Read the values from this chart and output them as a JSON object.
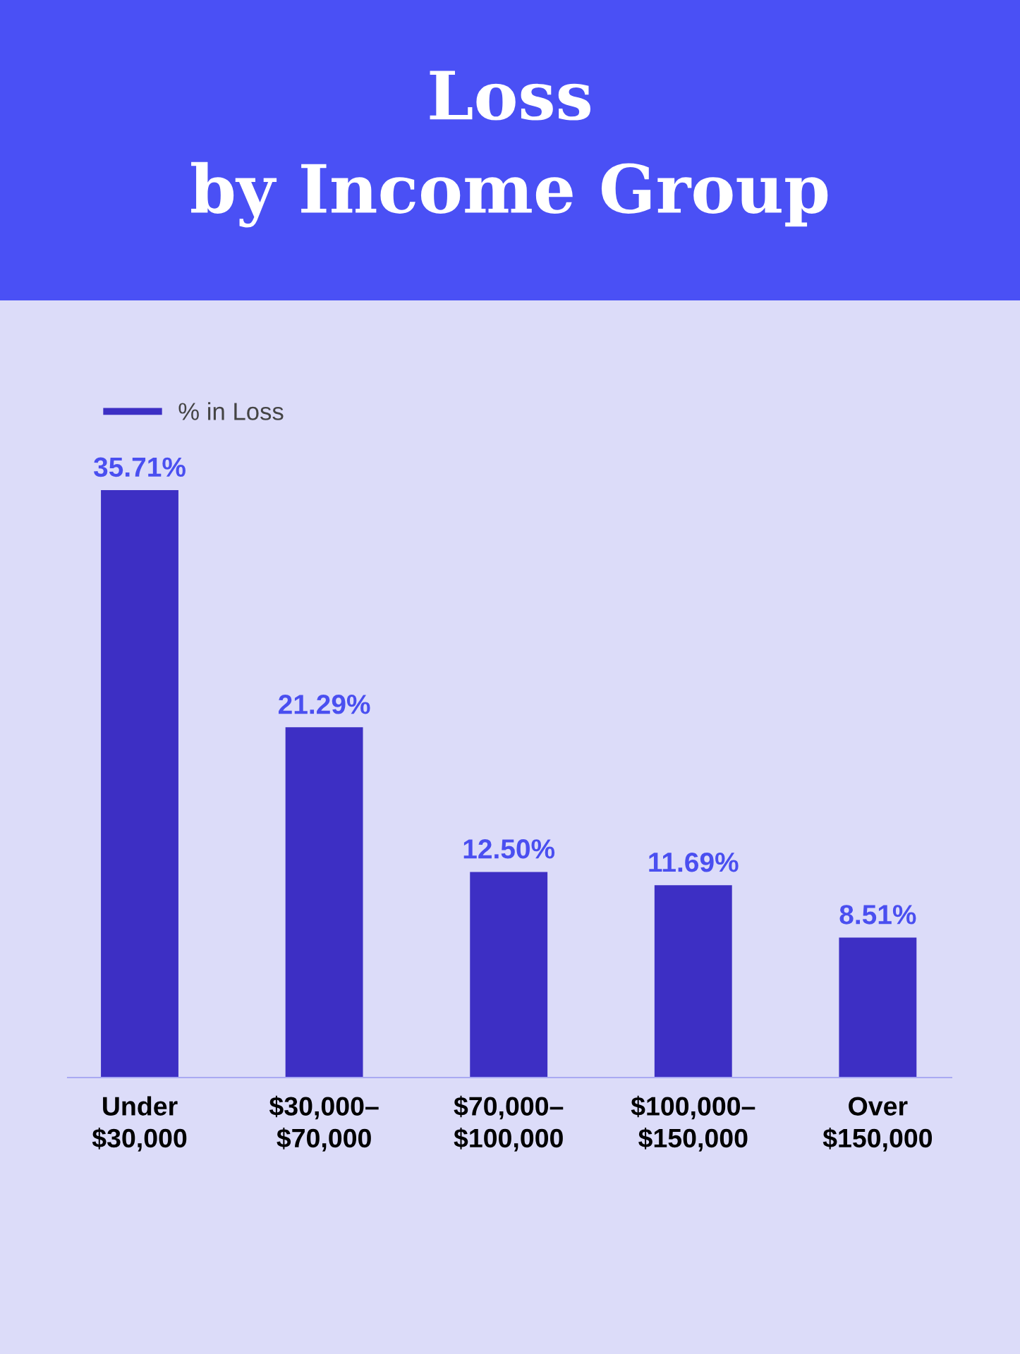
{
  "chart_data": {
    "type": "bar",
    "title": "Loss\nby Income Group",
    "categories": [
      "Under\n$30,000",
      "$30,000–\n$70,000",
      "$70,000–\n$100,000",
      "$100,000–\n$150,000",
      "Over\n$150,000"
    ],
    "series": [
      {
        "name": "% in Loss",
        "color": "#3d2fc4",
        "values": [
          35.71,
          21.29,
          12.5,
          11.69,
          8.51
        ],
        "value_labels": [
          "35.71%",
          "21.29%",
          "12.50%",
          "11.69%",
          "8.51%"
        ]
      }
    ],
    "legend": "top left",
    "tick_labels": "x"
  }
}
